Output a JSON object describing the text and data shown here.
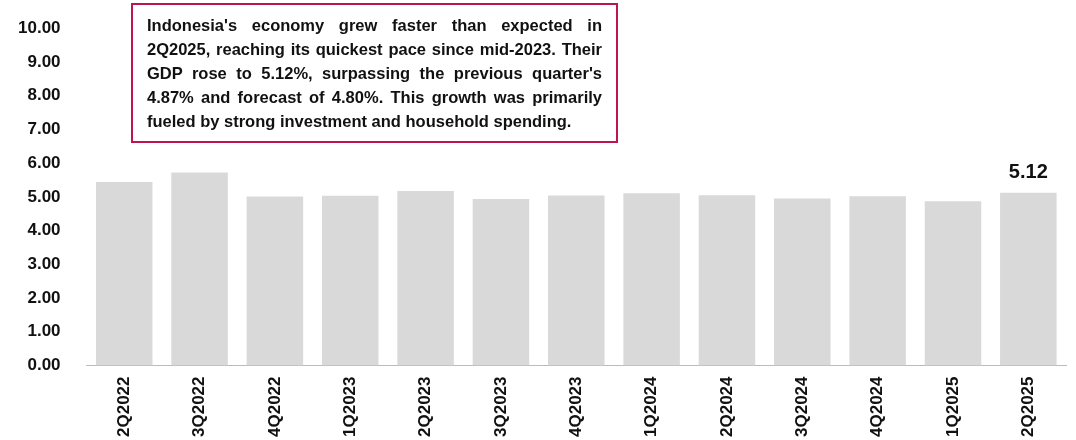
{
  "chart_data": {
    "type": "bar",
    "categories": [
      "2Q2022",
      "3Q2022",
      "4Q2022",
      "1Q2023",
      "2Q2023",
      "3Q2023",
      "4Q2023",
      "1Q2024",
      "2Q2024",
      "3Q2024",
      "4Q2024",
      "1Q2025",
      "2Q2025"
    ],
    "values": [
      5.44,
      5.72,
      5.01,
      5.03,
      5.17,
      4.94,
      5.04,
      5.11,
      5.05,
      4.95,
      5.02,
      4.87,
      5.12
    ],
    "value_labels": [
      null,
      null,
      null,
      null,
      null,
      null,
      null,
      null,
      null,
      null,
      null,
      null,
      "5.12"
    ],
    "color": "#d9d9d9",
    "ylim": [
      0,
      10
    ],
    "yticks": [
      {
        "value": 0,
        "label": "0.00"
      },
      {
        "value": 1,
        "label": "1.00"
      },
      {
        "value": 2,
        "label": "2.00"
      },
      {
        "value": 3,
        "label": "3.00"
      },
      {
        "value": 4,
        "label": "4.00"
      },
      {
        "value": 5,
        "label": "5.00"
      },
      {
        "value": 6,
        "label": "6.00"
      },
      {
        "value": 7,
        "label": "7.00"
      },
      {
        "value": 8,
        "label": "8.00"
      },
      {
        "value": 9,
        "label": "9.00"
      },
      {
        "value": 10,
        "label": "10.00"
      }
    ],
    "annotations": [
      "Indonesia's economy grew faster than expected in 2Q2025, reaching its quickest pace since mid-2023. Their GDP rose to 5.12%, surpassing the previous quarter's 4.87% and forecast of 4.80%. This growth was primarily fueled by strong investment and household spending."
    ],
    "grid": false,
    "legend": false
  }
}
